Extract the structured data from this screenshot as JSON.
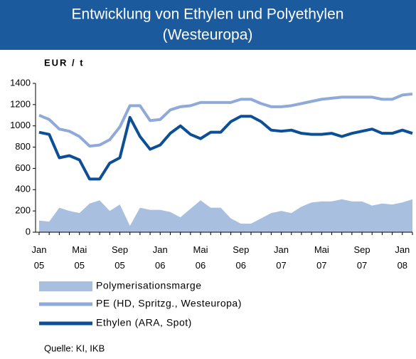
{
  "chart_data": {
    "type": "line",
    "title": "Entwicklung von Ethylen und Polyethylen",
    "subtitle": "(Westeuropa)",
    "y_label": "EUR / t",
    "source": "Quelle: KI, IKB",
    "categories": [
      "Jan 05",
      null,
      null,
      null,
      "Mai 05",
      null,
      null,
      null,
      "Sep 05",
      null,
      null,
      null,
      "Jan 06",
      null,
      null,
      null,
      "Mai 06",
      null,
      null,
      null,
      "Sep 06",
      null,
      null,
      null,
      "Jan 07",
      null,
      null,
      null,
      "Mai 07",
      null,
      null,
      null,
      "Sep 07",
      null,
      null,
      null,
      "Jan 08",
      null
    ],
    "ylim": [
      0,
      1400
    ],
    "yticks": [
      0,
      200,
      400,
      600,
      800,
      1000,
      1200,
      1400
    ],
    "grid": false,
    "series": [
      {
        "name": "Polymerisationsmarge",
        "style": "area",
        "color": "#a8bfe0",
        "values": [
          110,
          100,
          230,
          200,
          180,
          270,
          300,
          200,
          260,
          60,
          230,
          210,
          210,
          190,
          140,
          220,
          300,
          230,
          230,
          130,
          80,
          80,
          130,
          180,
          200,
          180,
          240,
          280,
          290,
          290,
          310,
          290,
          290,
          250,
          270,
          260,
          280,
          310
        ]
      },
      {
        "name": "PE (HD, Spritzg., Westeuropa)",
        "style": "line",
        "color": "#8fa9d8",
        "values": [
          1100,
          1060,
          970,
          950,
          900,
          810,
          820,
          870,
          990,
          1190,
          1190,
          1050,
          1060,
          1150,
          1180,
          1190,
          1220,
          1220,
          1220,
          1220,
          1250,
          1250,
          1210,
          1180,
          1180,
          1190,
          1210,
          1230,
          1250,
          1260,
          1270,
          1270,
          1270,
          1270,
          1250,
          1250,
          1290,
          1300
        ]
      },
      {
        "name": "Ethylen (ARA, Spot)",
        "style": "line",
        "color": "#0d4f96",
        "values": [
          940,
          920,
          700,
          720,
          680,
          500,
          500,
          650,
          700,
          1080,
          900,
          780,
          820,
          930,
          1000,
          920,
          880,
          940,
          940,
          1040,
          1090,
          1090,
          1040,
          960,
          950,
          960,
          930,
          920,
          920,
          930,
          900,
          930,
          950,
          970,
          930,
          930,
          960,
          930
        ]
      }
    ]
  }
}
